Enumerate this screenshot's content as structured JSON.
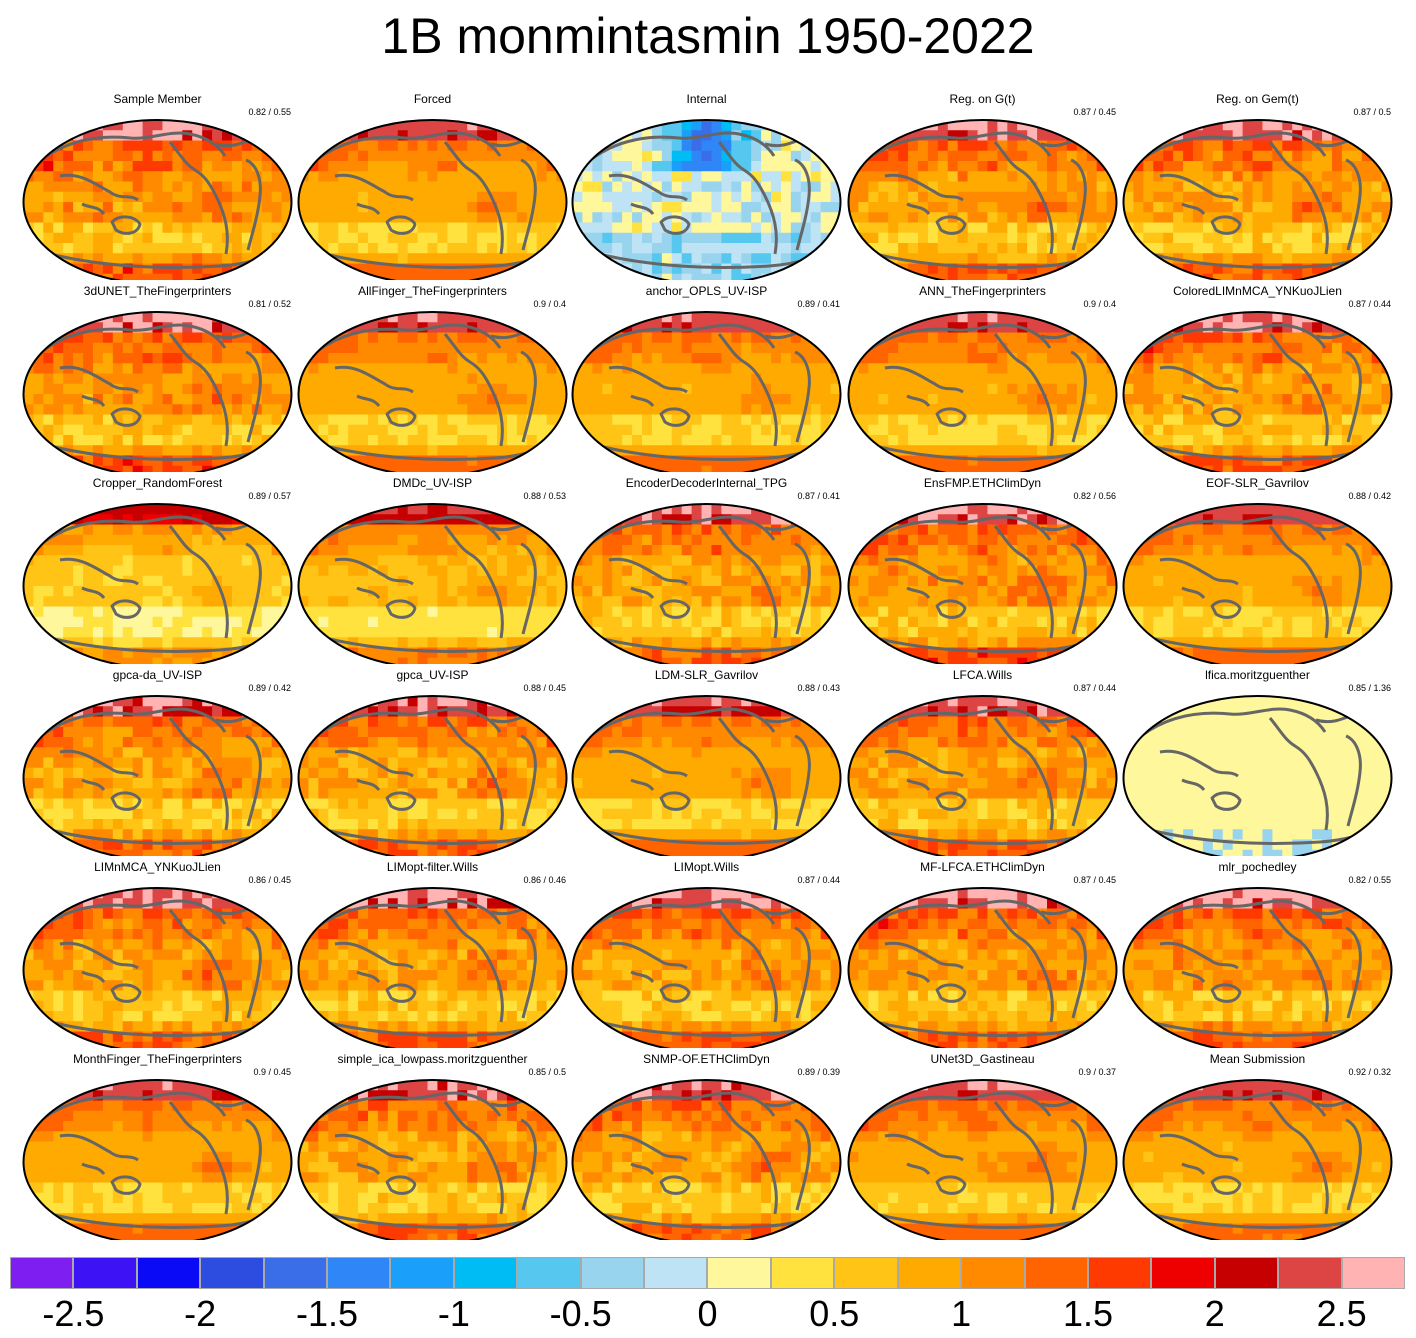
{
  "title": "1B monmintasmin 1950-2022",
  "panels": [
    {
      "title": "Sample Member",
      "score": "0.82 / 0.55",
      "pattern": "noisy",
      "shift": 0.15
    },
    {
      "title": "Forced",
      "score": "",
      "pattern": "smooth",
      "shift": 0.0
    },
    {
      "title": "Internal",
      "score": "",
      "pattern": "internal",
      "shift": 0.0
    },
    {
      "title": "Reg. on G(t)",
      "score": "0.87 / 0.45",
      "pattern": "noisy",
      "shift": 0.1
    },
    {
      "title": "Reg. on Gem(t)",
      "score": "0.87 / 0.5",
      "pattern": "noisy",
      "shift": 0.1
    },
    {
      "title": "3dUNET_TheFingerprinters",
      "score": "0.81 / 0.52",
      "pattern": "noisy",
      "shift": 0.15
    },
    {
      "title": "AllFinger_TheFingerprinters",
      "score": "0.9 / 0.4",
      "pattern": "smooth",
      "shift": 0.0
    },
    {
      "title": "anchor_OPLS_UV-ISP",
      "score": "0.89 / 0.41",
      "pattern": "smooth",
      "shift": 0.0
    },
    {
      "title": "ANN_TheFingerprinters",
      "score": "0.9 / 0.4",
      "pattern": "smooth",
      "shift": 0.0
    },
    {
      "title": "ColoredLIMnMCA_YNKuoJLien",
      "score": "0.87 / 0.44",
      "pattern": "noisy",
      "shift": 0.1
    },
    {
      "title": "Cropper_RandomForest",
      "score": "0.89 / 0.57",
      "pattern": "smooth",
      "shift": -0.3
    },
    {
      "title": "DMDc_UV-ISP",
      "score": "0.88 / 0.53",
      "pattern": "smooth",
      "shift": -0.15
    },
    {
      "title": "EncoderDecoderInternal_TPG",
      "score": "0.87 / 0.41",
      "pattern": "noisy",
      "shift": 0.05
    },
    {
      "title": "EnsFMP.ETHClimDyn",
      "score": "0.82 / 0.56",
      "pattern": "noisy",
      "shift": 0.15
    },
    {
      "title": "EOF-SLR_Gavrilov",
      "score": "0.88 / 0.42",
      "pattern": "smooth",
      "shift": 0.0
    },
    {
      "title": "gpca-da_UV-ISP",
      "score": "0.89 / 0.42",
      "pattern": "noisy",
      "shift": 0.05
    },
    {
      "title": "gpca_UV-ISP",
      "score": "0.88 / 0.45",
      "pattern": "noisy",
      "shift": 0.05
    },
    {
      "title": "LDM-SLR_Gavrilov",
      "score": "0.88 / 0.43",
      "pattern": "smooth",
      "shift": 0.0
    },
    {
      "title": "LFCA.Wills",
      "score": "0.87 / 0.44",
      "pattern": "noisy",
      "shift": 0.1
    },
    {
      "title": "lfica.moritzguenther",
      "score": "0.85 / 1.36",
      "pattern": "flat",
      "shift": 0.0
    },
    {
      "title": "LIMnMCA_YNKuoJLien",
      "score": "0.86 / 0.45",
      "pattern": "noisy",
      "shift": 0.1
    },
    {
      "title": "LIMopt-filter.Wills",
      "score": "0.86 / 0.46",
      "pattern": "noisy",
      "shift": 0.1
    },
    {
      "title": "LIMopt.Wills",
      "score": "0.87 / 0.44",
      "pattern": "noisy",
      "shift": 0.1
    },
    {
      "title": "MF-LFCA.ETHClimDyn",
      "score": "0.87 / 0.45",
      "pattern": "noisy",
      "shift": 0.1
    },
    {
      "title": "mlr_pochedley",
      "score": "0.82 / 0.55",
      "pattern": "noisy",
      "shift": 0.15
    },
    {
      "title": "MonthFinger_TheFingerprinters",
      "score": "0.9 / 0.45",
      "pattern": "smooth",
      "shift": 0.0
    },
    {
      "title": "simple_ica_lowpass.moritzguenther",
      "score": "0.85 / 0.5",
      "pattern": "noisy",
      "shift": 0.05
    },
    {
      "title": "SNMP-OF.ETHClimDyn",
      "score": "0.89 / 0.39",
      "pattern": "noisy",
      "shift": 0.05
    },
    {
      "title": "UNet3D_Gastineau",
      "score": "0.9 / 0.37",
      "pattern": "smooth",
      "shift": 0.05
    },
    {
      "title": "Mean Submission",
      "score": "0.92 / 0.32",
      "pattern": "smooth",
      "shift": 0.0
    }
  ],
  "colorbar": {
    "colors": [
      "#7e1ef0",
      "#3d13f5",
      "#0a0af7",
      "#2d4de0",
      "#3a6ee8",
      "#2f86f7",
      "#1aa0fa",
      "#00bcf5",
      "#56c8f0",
      "#99d4ee",
      "#bee3f5",
      "#fff79b",
      "#ffe23d",
      "#ffc416",
      "#ffaa00",
      "#ff8a00",
      "#ff6400",
      "#ff3a00",
      "#ee0000",
      "#c60000",
      "#dd4444",
      "#ffb3b3"
    ],
    "levels": [
      -2.75,
      -2.5,
      -2.25,
      -2,
      -1.75,
      -1.5,
      -1.25,
      -1,
      -0.75,
      -0.5,
      -0.25,
      0,
      0.25,
      0.5,
      0.75,
      1,
      1.25,
      1.5,
      1.75,
      2,
      2.25,
      2.5,
      2.75
    ],
    "tick_labels": [
      "-2.5",
      "-2",
      "-1.5",
      "-1",
      "-0.5",
      "0",
      "0.5",
      "1",
      "1.5",
      "2",
      "2.5"
    ]
  },
  "coastline_color": "#666666"
}
